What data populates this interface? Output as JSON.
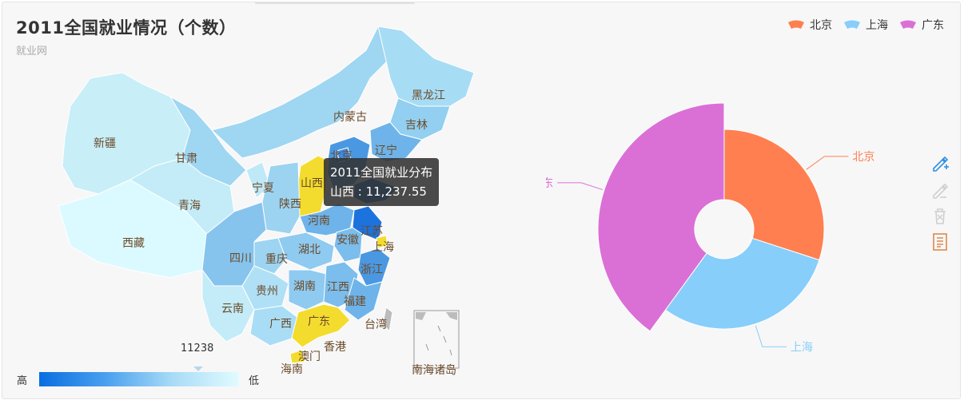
{
  "title": "2011全国就业情况（个数）",
  "subtitle": "就业网",
  "legend": [
    "北京",
    "上海",
    "广东"
  ],
  "colors": {
    "北京": "#ff7f50",
    "上海": "#87cefa",
    "广东": "#da70d6",
    "highlight": "#f3dc2e",
    "tooltip_bg": "#323232"
  },
  "tooltip": {
    "title": "2011全国就业分布",
    "line": "山西 : 11,237.55"
  },
  "visual_map": {
    "high_label": "高",
    "low_label": "低",
    "current_value": "11238"
  },
  "map_labels": [
    "黑龙江",
    "吉林",
    "辽宁",
    "内蒙古",
    "北京",
    "新疆",
    "甘肃",
    "宁夏",
    "山西",
    "青海",
    "陕西",
    "河南",
    "西藏",
    "安徽",
    "江苏",
    "上海",
    "四川",
    "重庆",
    "湖北",
    "浙江",
    "贵州",
    "湖南",
    "江西",
    "福建",
    "云南",
    "广西",
    "广东",
    "台湾",
    "香港",
    "澳门",
    "海南",
    "南海诸岛"
  ],
  "toolbox": [
    "pencil-add-icon",
    "pencil-icon",
    "trash-icon",
    "data-view-icon"
  ],
  "chart_data": [
    {
      "type": "map",
      "title": "2011全国就业情况（个数）",
      "series_name": "2011全国就业分布",
      "values": {
        "山西": 11237.55
      },
      "highlighted": [
        "山西",
        "上海",
        "广东"
      ],
      "visual_map": {
        "high": "高",
        "low": "低",
        "indicator": 11238,
        "colors": [
          "#0a6ee0",
          "#e1fbff"
        ]
      }
    },
    {
      "type": "pie",
      "rose": true,
      "categories": [
        "北京",
        "上海",
        "广东"
      ],
      "values": [
        3,
        3,
        4
      ],
      "legend_position": "top-right"
    }
  ]
}
